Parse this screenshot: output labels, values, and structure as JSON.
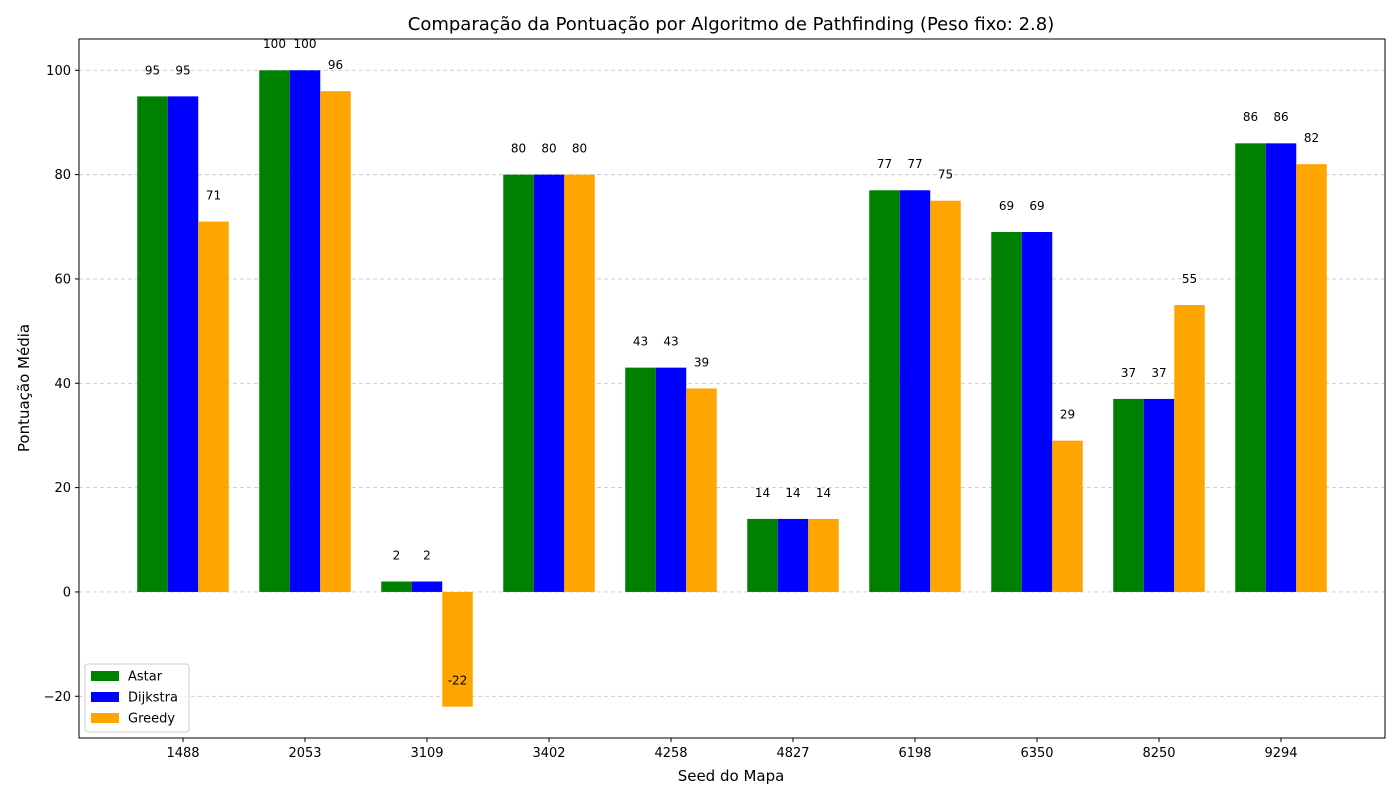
{
  "chart_data": {
    "type": "bar",
    "title": "Comparação da Pontuação por Algoritmo de Pathfinding (Peso fixo: 2.8)",
    "xlabel": "Seed do Mapa",
    "ylabel": "Pontuação Média",
    "categories": [
      "1488",
      "2053",
      "3109",
      "3402",
      "4258",
      "4827",
      "6198",
      "6350",
      "8250",
      "9294"
    ],
    "series": [
      {
        "name": "Astar",
        "color": "#008000",
        "values": [
          95,
          100,
          2,
          80,
          43,
          14,
          77,
          69,
          37,
          86
        ]
      },
      {
        "name": "Dijkstra",
        "color": "#0000ff",
        "values": [
          95,
          100,
          2,
          80,
          43,
          14,
          77,
          69,
          37,
          86
        ]
      },
      {
        "name": "Greedy",
        "color": "#ffa500",
        "values": [
          71,
          96,
          -22,
          80,
          39,
          14,
          75,
          29,
          55,
          82
        ]
      }
    ],
    "ylim": [
      -28,
      106
    ],
    "yticks": [
      -20,
      0,
      20,
      40,
      60,
      80,
      100
    ],
    "grid": "y-dashed",
    "legend_position": "lower-left"
  }
}
